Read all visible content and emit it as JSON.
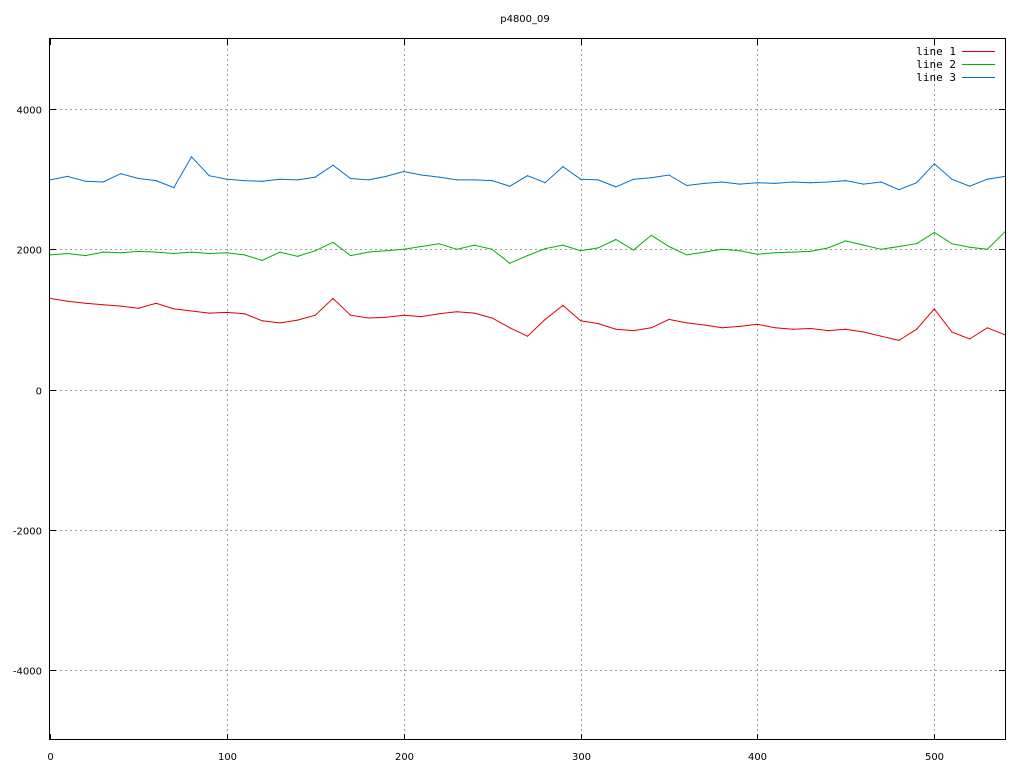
{
  "chart_data": {
    "type": "line",
    "title": "p4800_09",
    "xlabel": "",
    "ylabel": "",
    "xlim": [
      0,
      540
    ],
    "ylim": [
      -5000,
      5000
    ],
    "x_ticks": [
      0,
      100,
      200,
      300,
      400,
      500
    ],
    "y_ticks": [
      -4000,
      -2000,
      0,
      2000,
      4000
    ],
    "x_tick_labels": [
      "0",
      "100",
      "200",
      "300",
      "400",
      "500"
    ],
    "y_tick_labels": [
      "-4000",
      "-2000",
      "0",
      "2000",
      "4000"
    ],
    "grid": true,
    "legend": "top-right",
    "x": [
      0,
      10,
      20,
      30,
      40,
      50,
      60,
      70,
      80,
      90,
      100,
      110,
      120,
      130,
      140,
      150,
      160,
      170,
      180,
      190,
      200,
      210,
      220,
      230,
      240,
      250,
      260,
      270,
      280,
      290,
      300,
      310,
      320,
      330,
      340,
      350,
      360,
      370,
      380,
      390,
      400,
      410,
      420,
      430,
      440,
      450,
      460,
      470,
      480,
      490,
      500,
      510,
      520,
      530,
      540
    ],
    "series": [
      {
        "name": "line 1",
        "color": "#e00000",
        "values": [
          1300,
          1260,
          1230,
          1210,
          1190,
          1160,
          1230,
          1150,
          1120,
          1090,
          1100,
          1080,
          980,
          950,
          990,
          1060,
          1300,
          1060,
          1020,
          1030,
          1060,
          1040,
          1080,
          1110,
          1090,
          1020,
          880,
          760,
          1000,
          1200,
          980,
          940,
          860,
          840,
          880,
          1000,
          950,
          920,
          880,
          900,
          930,
          880,
          860,
          870,
          840,
          860,
          820,
          760,
          700,
          860,
          1150,
          820,
          720,
          880,
          780
        ]
      },
      {
        "name": "line 2",
        "color": "#00b000",
        "values": [
          1920,
          1940,
          1910,
          1960,
          1950,
          1970,
          1960,
          1940,
          1960,
          1940,
          1950,
          1920,
          1840,
          1960,
          1900,
          1980,
          2100,
          1910,
          1960,
          1980,
          2000,
          2040,
          2080,
          2000,
          2060,
          2000,
          1800,
          1910,
          2010,
          2060,
          1980,
          2020,
          2140,
          1990,
          2200,
          2040,
          1920,
          1960,
          2000,
          1980,
          1930,
          1950,
          1960,
          1970,
          2020,
          2120,
          2060,
          2000,
          2040,
          2080,
          2240,
          2080,
          2030,
          2000,
          2250
        ]
      },
      {
        "name": "line 3",
        "color": "#0070d0",
        "values": [
          2990,
          3040,
          2970,
          2960,
          3080,
          3010,
          2980,
          2880,
          3320,
          3050,
          3000,
          2980,
          2970,
          3000,
          2990,
          3030,
          3200,
          3010,
          2990,
          3040,
          3110,
          3060,
          3030,
          2990,
          2990,
          2980,
          2900,
          3050,
          2950,
          3180,
          3000,
          2990,
          2890,
          3000,
          3020,
          3060,
          2910,
          2940,
          2960,
          2930,
          2950,
          2940,
          2960,
          2950,
          2960,
          2980,
          2930,
          2960,
          2850,
          2950,
          3220,
          3000,
          2900,
          3000,
          3040
        ]
      }
    ]
  }
}
